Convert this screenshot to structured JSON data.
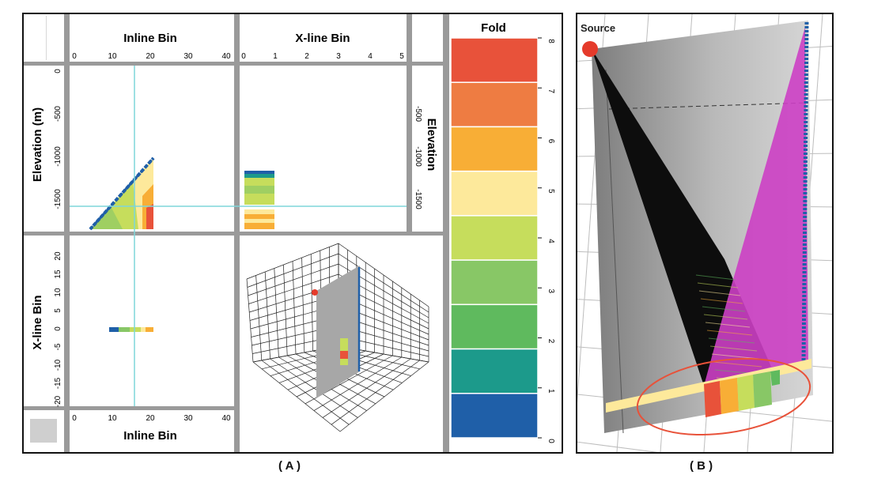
{
  "panel_a": {
    "caption": "( A )",
    "top_xaxis_title": "Inline Bin",
    "top_xaxis_ticks": [
      "0",
      "10",
      "20",
      "30",
      "40"
    ],
    "xline_xaxis_title": "X-line Bin",
    "xline_xaxis_ticks": [
      "0",
      "1",
      "2",
      "3",
      "4",
      "5"
    ],
    "left_yaxis_title": "Elevation (m)",
    "left_yaxis_ticks": [
      "0",
      "-500",
      "-1000",
      "-1500"
    ],
    "right_yaxis_title": "Elevation",
    "right_yaxis_ticks": [
      "-500",
      "-1000",
      "-1500"
    ],
    "bottom_left_yaxis_title": "X-line Bin",
    "bottom_left_yaxis_ticks": [
      "20",
      "15",
      "10",
      "5",
      "0",
      "-5",
      "-10",
      "-15",
      "-20"
    ],
    "bottom_xaxis_title": "Inline Bin",
    "bottom_xaxis_ticks": [
      "0",
      "10",
      "20",
      "30",
      "40"
    ],
    "colorbar_title": "Fold",
    "colorbar_ticks": [
      "8",
      "7",
      "6",
      "5",
      "4",
      "3",
      "2",
      "1",
      "0"
    ],
    "colorbar_colors": [
      "#e8523a",
      "#ee7c42",
      "#f8ae36",
      "#fde99b",
      "#c6dd5c",
      "#88c766",
      "#5fba5e",
      "#1c9a8b",
      "#1f5fa8"
    ]
  },
  "panel_b": {
    "caption": "( B )",
    "source_label": "Source"
  }
}
